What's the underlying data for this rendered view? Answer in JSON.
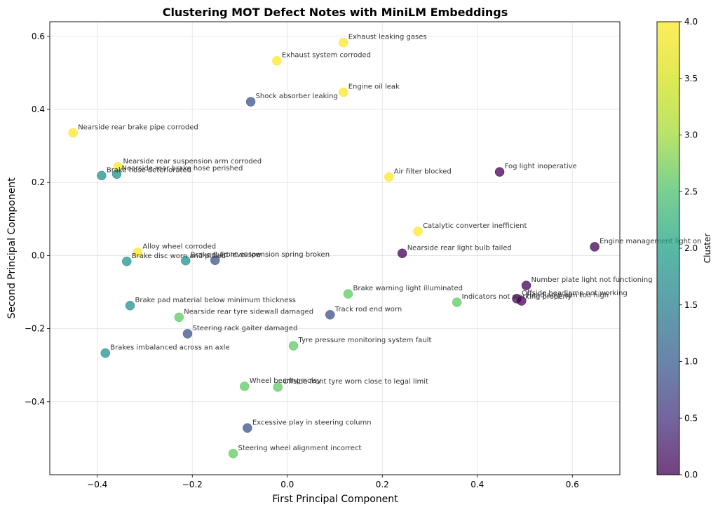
{
  "chart_data": {
    "type": "scatter",
    "title": "Clustering MOT Defect Notes with MiniLM Embeddings",
    "xlabel": "First Principal Component",
    "ylabel": "Second Principal Component",
    "xlim": [
      -0.5,
      0.7
    ],
    "ylim": [
      -0.6,
      0.64
    ],
    "xticks": [
      -0.4,
      -0.2,
      0.0,
      0.2,
      0.4,
      0.6
    ],
    "yticks": [
      -0.4,
      -0.2,
      0.0,
      0.2,
      0.4,
      0.6
    ],
    "xtick_labels": [
      "−0.4",
      "−0.2",
      "0.0",
      "0.2",
      "0.4",
      "0.6"
    ],
    "ytick_labels": [
      "−0.4",
      "−0.2",
      "0.0",
      "0.2",
      "0.4",
      "0.6"
    ],
    "grid": true,
    "colormap": "viridis",
    "marker_alpha": 0.75,
    "colorbar": {
      "label": "Cluster",
      "min": 0.0,
      "max": 4.0,
      "ticks": [
        0.0,
        0.5,
        1.0,
        1.5,
        2.0,
        2.5,
        3.0,
        3.5,
        4.0
      ],
      "tick_labels": [
        "0.0",
        "0.5",
        "1.0",
        "1.5",
        "2.0",
        "2.5",
        "3.0",
        "3.5",
        "4.0"
      ]
    },
    "points": [
      {
        "label": "Exhaust leaking gases",
        "x": 0.118,
        "y": 0.583,
        "cluster": 4
      },
      {
        "label": "Exhaust system corroded",
        "x": -0.022,
        "y": 0.533,
        "cluster": 4
      },
      {
        "label": "Engine oil leak",
        "x": 0.118,
        "y": 0.447,
        "cluster": 4
      },
      {
        "label": "Shock absorber leaking",
        "x": -0.077,
        "y": 0.421,
        "cluster": 1
      },
      {
        "label": "Nearside rear brake pipe corroded",
        "x": -0.451,
        "y": 0.336,
        "cluster": 4
      },
      {
        "label": "Nearside rear suspension arm corroded",
        "x": -0.356,
        "y": 0.243,
        "cluster": 4
      },
      {
        "label": "Nearside rear brake hose perished",
        "x": -0.359,
        "y": 0.223,
        "cluster": 2
      },
      {
        "label": "Brake hose deteriorated",
        "x": -0.391,
        "y": 0.219,
        "cluster": 2
      },
      {
        "label": "Air filter blocked",
        "x": 0.214,
        "y": 0.215,
        "cluster": 4
      },
      {
        "label": "Fog light inoperative",
        "x": 0.447,
        "y": 0.229,
        "cluster": 0
      },
      {
        "label": "Catalytic converter inefficient",
        "x": 0.275,
        "y": 0.066,
        "cluster": 4
      },
      {
        "label": "Engine management light on",
        "x": 0.647,
        "y": 0.024,
        "cluster": 0
      },
      {
        "label": "Nearside rear light bulb failed",
        "x": 0.242,
        "y": 0.006,
        "cluster": 0
      },
      {
        "label": "Alloy wheel corroded",
        "x": -0.315,
        "y": 0.009,
        "cluster": 4
      },
      {
        "label": "Brake disc worn and pitted",
        "x": -0.338,
        "y": -0.016,
        "cluster": 2
      },
      {
        "label": "Brake fluid level low",
        "x": -0.214,
        "y": -0.014,
        "cluster": 2
      },
      {
        "label": "Front suspension spring broken",
        "x": -0.152,
        "y": -0.013,
        "cluster": 1
      },
      {
        "label": "Number plate light not functioning",
        "x": 0.503,
        "y": -0.082,
        "cluster": 0
      },
      {
        "label": "Offside headlamp not working",
        "x": 0.483,
        "y": -0.118,
        "cluster": 0
      },
      {
        "label": "Headlamp aim too high",
        "x": 0.493,
        "y": -0.124,
        "cluster": 0
      },
      {
        "label": "Indicators not working properly",
        "x": 0.357,
        "y": -0.128,
        "cluster": 3
      },
      {
        "label": "Brake warning light illuminated",
        "x": 0.128,
        "y": -0.105,
        "cluster": 3
      },
      {
        "label": "Brake pad material below minimum thickness",
        "x": -0.331,
        "y": -0.137,
        "cluster": 2
      },
      {
        "label": "Nearside rear tyre sidewall damaged",
        "x": -0.228,
        "y": -0.169,
        "cluster": 3
      },
      {
        "label": "Track rod end worn",
        "x": 0.09,
        "y": -0.162,
        "cluster": 1
      },
      {
        "label": "Steering rack gaiter damaged",
        "x": -0.21,
        "y": -0.214,
        "cluster": 1
      },
      {
        "label": "Tyre pressure monitoring system fault",
        "x": 0.013,
        "y": -0.247,
        "cluster": 3
      },
      {
        "label": "Brakes imbalanced across an axle",
        "x": -0.383,
        "y": -0.267,
        "cluster": 2
      },
      {
        "label": "Wheel bearing noisy",
        "x": -0.09,
        "y": -0.358,
        "cluster": 3
      },
      {
        "label": "Offside front tyre worn close to legal limit",
        "x": -0.02,
        "y": -0.36,
        "cluster": 3
      },
      {
        "label": "Excessive play in steering column",
        "x": -0.084,
        "y": -0.472,
        "cluster": 1
      },
      {
        "label": "Steering wheel alignment incorrect",
        "x": -0.114,
        "y": -0.542,
        "cluster": 3
      }
    ]
  }
}
